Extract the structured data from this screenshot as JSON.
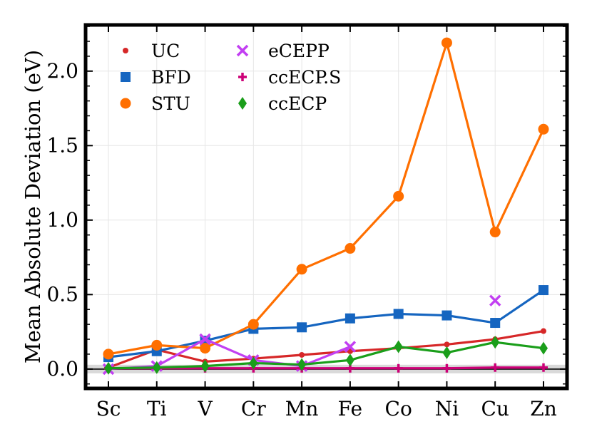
{
  "chart_data": {
    "type": "line",
    "title": "",
    "xlabel": "",
    "ylabel": "Mean Absolute Deviation (eV)",
    "categories": [
      "Sc",
      "Ti",
      "V",
      "Cr",
      "Mn",
      "Fe",
      "Co",
      "Ni",
      "Cu",
      "Zn"
    ],
    "ylim": [
      -0.13,
      2.31
    ],
    "yticks": [
      0.0,
      0.5,
      1.0,
      1.5,
      2.0
    ],
    "ytick_labels": [
      "0.0",
      "0.5",
      "1.0",
      "1.5",
      "2.0"
    ],
    "grid": true,
    "reference_line": 0.0,
    "legend_position": "top-left",
    "series": [
      {
        "name": "UC",
        "color": "#d62728",
        "marker": "dot",
        "connected": true,
        "values": [
          0.01,
          0.13,
          0.05,
          0.07,
          0.095,
          0.12,
          0.14,
          0.165,
          0.2,
          0.255
        ]
      },
      {
        "name": "BFD",
        "color": "#1565c0",
        "marker": "square",
        "connected": true,
        "values": [
          0.08,
          0.12,
          0.19,
          0.27,
          0.28,
          0.34,
          0.37,
          0.36,
          0.31,
          0.53
        ]
      },
      {
        "name": "STU",
        "color": "#ff6f00",
        "marker": "circle",
        "connected": true,
        "values": [
          0.1,
          0.16,
          0.14,
          0.3,
          0.67,
          0.81,
          1.16,
          2.19,
          0.92,
          1.61
        ]
      },
      {
        "name": "eCEPP",
        "color": "#c23ff2",
        "marker": "x",
        "connected": true,
        "values": [
          0.0,
          0.02,
          0.2,
          0.06,
          0.02,
          0.15,
          null,
          null,
          0.46,
          null
        ]
      },
      {
        "name": "ccECP.S",
        "color": "#cc0077",
        "marker": "plus",
        "connected": true,
        "values": [
          0.005,
          0.005,
          0.005,
          0.005,
          0.005,
          0.005,
          0.005,
          0.005,
          0.01,
          0.01
        ]
      },
      {
        "name": "ccECP",
        "color": "#1a9e1a",
        "marker": "diamond",
        "connected": true,
        "values": [
          0.005,
          0.01,
          0.02,
          0.04,
          0.03,
          0.06,
          0.15,
          0.11,
          0.18,
          0.14
        ]
      }
    ]
  }
}
